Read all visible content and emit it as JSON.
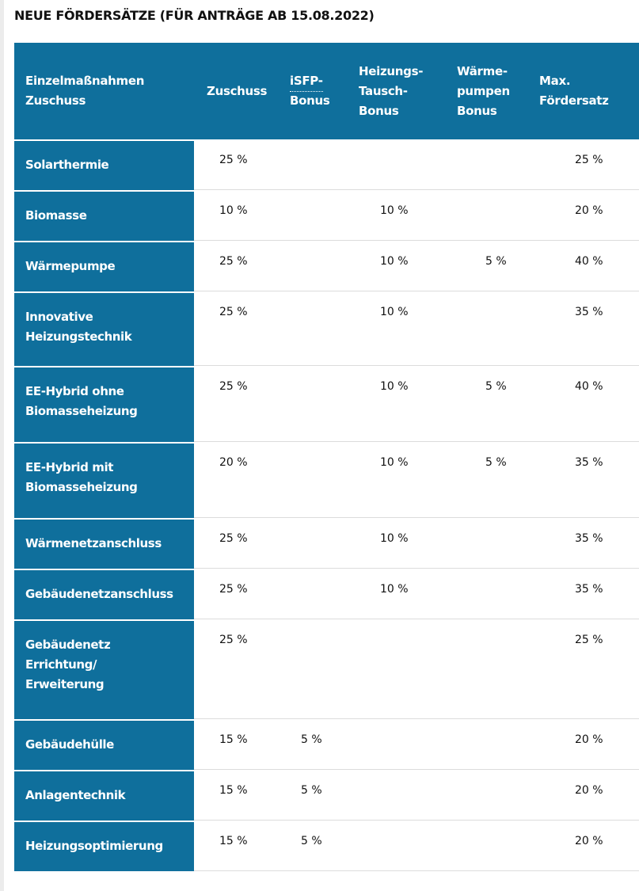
{
  "title": "NEUE FÖRDERSÄTZE (FÜR ANTRÄGE AB 15.08.2022)",
  "table": {
    "headers": [
      [
        "Einzelmaßnahmen",
        "Zuschuss"
      ],
      [
        "Zuschuss"
      ],
      [
        "iSFP-",
        "Bonus"
      ],
      [
        "Heizungs-",
        "Tausch-",
        "Bonus"
      ],
      [
        "Wärme-",
        "pumpen",
        "Bonus"
      ],
      [
        "Max.",
        "Fördersatz"
      ]
    ],
    "rows": [
      {
        "label": [
          "Solarthermie"
        ],
        "cells": [
          "25 %",
          null,
          null,
          null,
          "25 %"
        ]
      },
      {
        "label": [
          "Biomasse"
        ],
        "cells": [
          "10 %",
          null,
          "10 %",
          null,
          "20 %"
        ]
      },
      {
        "label": [
          "Wärmepumpe"
        ],
        "cells": [
          "25 %",
          null,
          "10 %",
          "5 %",
          "40 %"
        ]
      },
      {
        "label": [
          "Innovative",
          "Heizungstechnik"
        ],
        "cells": [
          "25 %",
          null,
          "10 %",
          null,
          "35 %"
        ]
      },
      {
        "label": [
          "EE-Hybrid ohne",
          "Biomasseheizung"
        ],
        "cells": [
          "25 %",
          null,
          "10 %",
          "5 %",
          "40 %"
        ]
      },
      {
        "label": [
          "EE-Hybrid mit",
          "Biomasseheizung"
        ],
        "cells": [
          "20 %",
          null,
          "10 %",
          "5 %",
          "35 %"
        ]
      },
      {
        "label": [
          "Wärmenetzanschluss"
        ],
        "cells": [
          "25 %",
          null,
          "10 %",
          null,
          "35 %"
        ]
      },
      {
        "label": [
          "Gebäudenetzanschluss"
        ],
        "cells": [
          "25 %",
          null,
          "10 %",
          null,
          "35 %"
        ]
      },
      {
        "label": [
          "Gebäudenetz",
          "Errichtung/",
          "Erweiterung"
        ],
        "cells": [
          "25 %",
          null,
          null,
          null,
          "25 %"
        ]
      },
      {
        "label": [
          "Gebäudehülle"
        ],
        "cells": [
          "15 %",
          "5 %",
          null,
          null,
          "20 %"
        ]
      },
      {
        "label": [
          "Anlagentechnik"
        ],
        "cells": [
          "15 %",
          "5 %",
          null,
          null,
          "20 %"
        ]
      },
      {
        "label": [
          "Heizungsoptimierung"
        ],
        "cells": [
          "15 %",
          "5 %",
          null,
          null,
          "20 %"
        ]
      }
    ]
  }
}
